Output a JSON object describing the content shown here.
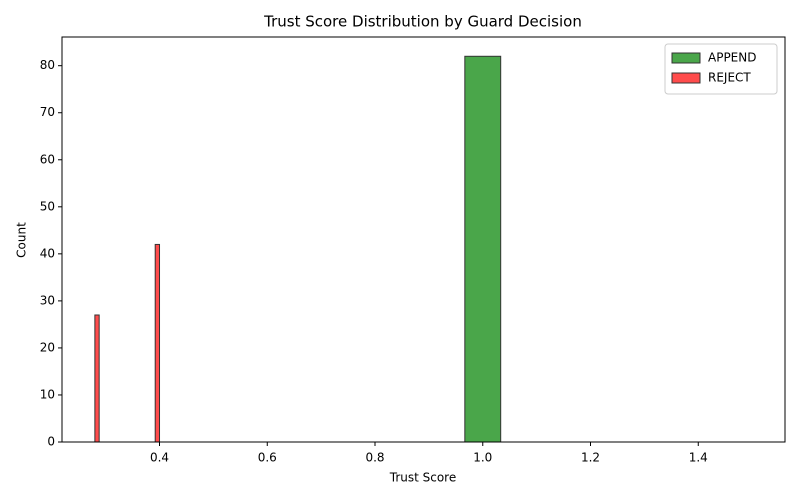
{
  "chart_data": {
    "type": "histogram",
    "title": "Trust Score Distribution by Guard Decision",
    "xlabel": "Trust Score",
    "ylabel": "Count",
    "series": [
      {
        "name": "APPEND",
        "color": "#4aa64a",
        "bins": [
          0.5,
          0.5667,
          0.6333,
          0.7,
          0.7667,
          0.8333,
          0.9,
          0.9667,
          1.0333,
          1.1,
          1.1667,
          1.2333,
          1.3,
          1.3667,
          1.4333,
          1.5
        ],
        "counts": [
          0,
          0,
          0,
          0,
          0,
          0,
          0,
          82,
          0,
          0,
          0,
          0,
          0,
          0,
          0
        ]
      },
      {
        "name": "REJECT",
        "color": "#ff4c4c",
        "bins": [
          0.28,
          0.288,
          0.296,
          0.304,
          0.312,
          0.32,
          0.328,
          0.336,
          0.344,
          0.352,
          0.36,
          0.368,
          0.376,
          0.384,
          0.392,
          0.4
        ],
        "counts": [
          27,
          0,
          0,
          0,
          0,
          0,
          0,
          0,
          0,
          0,
          0,
          0,
          0,
          0,
          42
        ]
      }
    ],
    "xlim": [
      0.219,
      1.561
    ],
    "ylim": [
      0,
      86.1
    ],
    "xticks": [
      0.4,
      0.6,
      0.8,
      {
        "value": 1,
        "label": "1.0"
      },
      1.2,
      1.4
    ],
    "yticks": [
      0,
      10,
      20,
      30,
      40,
      50,
      60,
      70,
      80
    ],
    "legend": "upper right"
  }
}
